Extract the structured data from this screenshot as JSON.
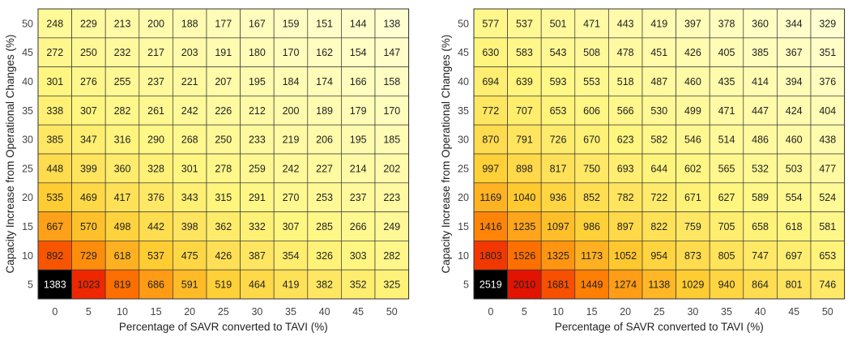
{
  "chart_data": [
    {
      "type": "heatmap",
      "xlabel": "Percentage of SAVR converted to TAVI (%)",
      "ylabel": "Capacity Increase from Operational Changes (%)",
      "x": [
        0,
        5,
        10,
        15,
        20,
        25,
        30,
        35,
        40,
        45,
        50
      ],
      "y": [
        50,
        45,
        40,
        35,
        30,
        25,
        20,
        15,
        10,
        5
      ],
      "colormap": "hot",
      "values": [
        [
          248,
          229,
          213,
          200,
          188,
          177,
          167,
          159,
          151,
          144,
          138
        ],
        [
          272,
          250,
          232,
          217,
          203,
          191,
          180,
          170,
          162,
          154,
          147
        ],
        [
          301,
          276,
          255,
          237,
          221,
          207,
          195,
          184,
          174,
          166,
          158
        ],
        [
          338,
          307,
          282,
          261,
          242,
          226,
          212,
          200,
          189,
          179,
          170
        ],
        [
          385,
          347,
          316,
          290,
          268,
          250,
          233,
          219,
          206,
          195,
          185
        ],
        [
          448,
          399,
          360,
          328,
          301,
          278,
          259,
          242,
          227,
          214,
          202
        ],
        [
          535,
          469,
          417,
          376,
          343,
          315,
          291,
          270,
          253,
          237,
          223
        ],
        [
          667,
          570,
          498,
          442,
          398,
          362,
          332,
          307,
          285,
          266,
          249
        ],
        [
          892,
          729,
          618,
          537,
          475,
          426,
          387,
          354,
          326,
          303,
          282
        ],
        [
          1383,
          1023,
          819,
          686,
          591,
          519,
          464,
          419,
          382,
          352,
          325
        ]
      ]
    },
    {
      "type": "heatmap",
      "xlabel": "Percentage of SAVR converted to TAVI (%)",
      "ylabel": "Capacity Increase from Operational Changes (%)",
      "x": [
        0,
        5,
        10,
        15,
        20,
        25,
        30,
        35,
        40,
        45,
        50
      ],
      "y": [
        50,
        45,
        40,
        35,
        30,
        25,
        20,
        15,
        10,
        5
      ],
      "colormap": "hot",
      "values": [
        [
          577,
          537,
          501,
          471,
          443,
          419,
          397,
          378,
          360,
          344,
          329
        ],
        [
          630,
          583,
          543,
          508,
          478,
          451,
          426,
          405,
          385,
          367,
          351
        ],
        [
          694,
          639,
          593,
          553,
          518,
          487,
          460,
          435,
          414,
          394,
          376
        ],
        [
          772,
          707,
          653,
          606,
          566,
          530,
          499,
          471,
          447,
          424,
          404
        ],
        [
          870,
          791,
          726,
          670,
          623,
          582,
          546,
          514,
          486,
          460,
          438
        ],
        [
          997,
          898,
          817,
          750,
          693,
          644,
          602,
          565,
          532,
          503,
          477
        ],
        [
          1169,
          1040,
          936,
          852,
          782,
          722,
          671,
          627,
          589,
          554,
          524
        ],
        [
          1416,
          1235,
          1097,
          986,
          897,
          822,
          759,
          705,
          658,
          618,
          581
        ],
        [
          1803,
          1526,
          1325,
          1173,
          1052,
          954,
          873,
          805,
          747,
          697,
          653
        ],
        [
          2519,
          2010,
          1681,
          1449,
          1274,
          1138,
          1029,
          940,
          864,
          801,
          746
        ]
      ]
    }
  ]
}
